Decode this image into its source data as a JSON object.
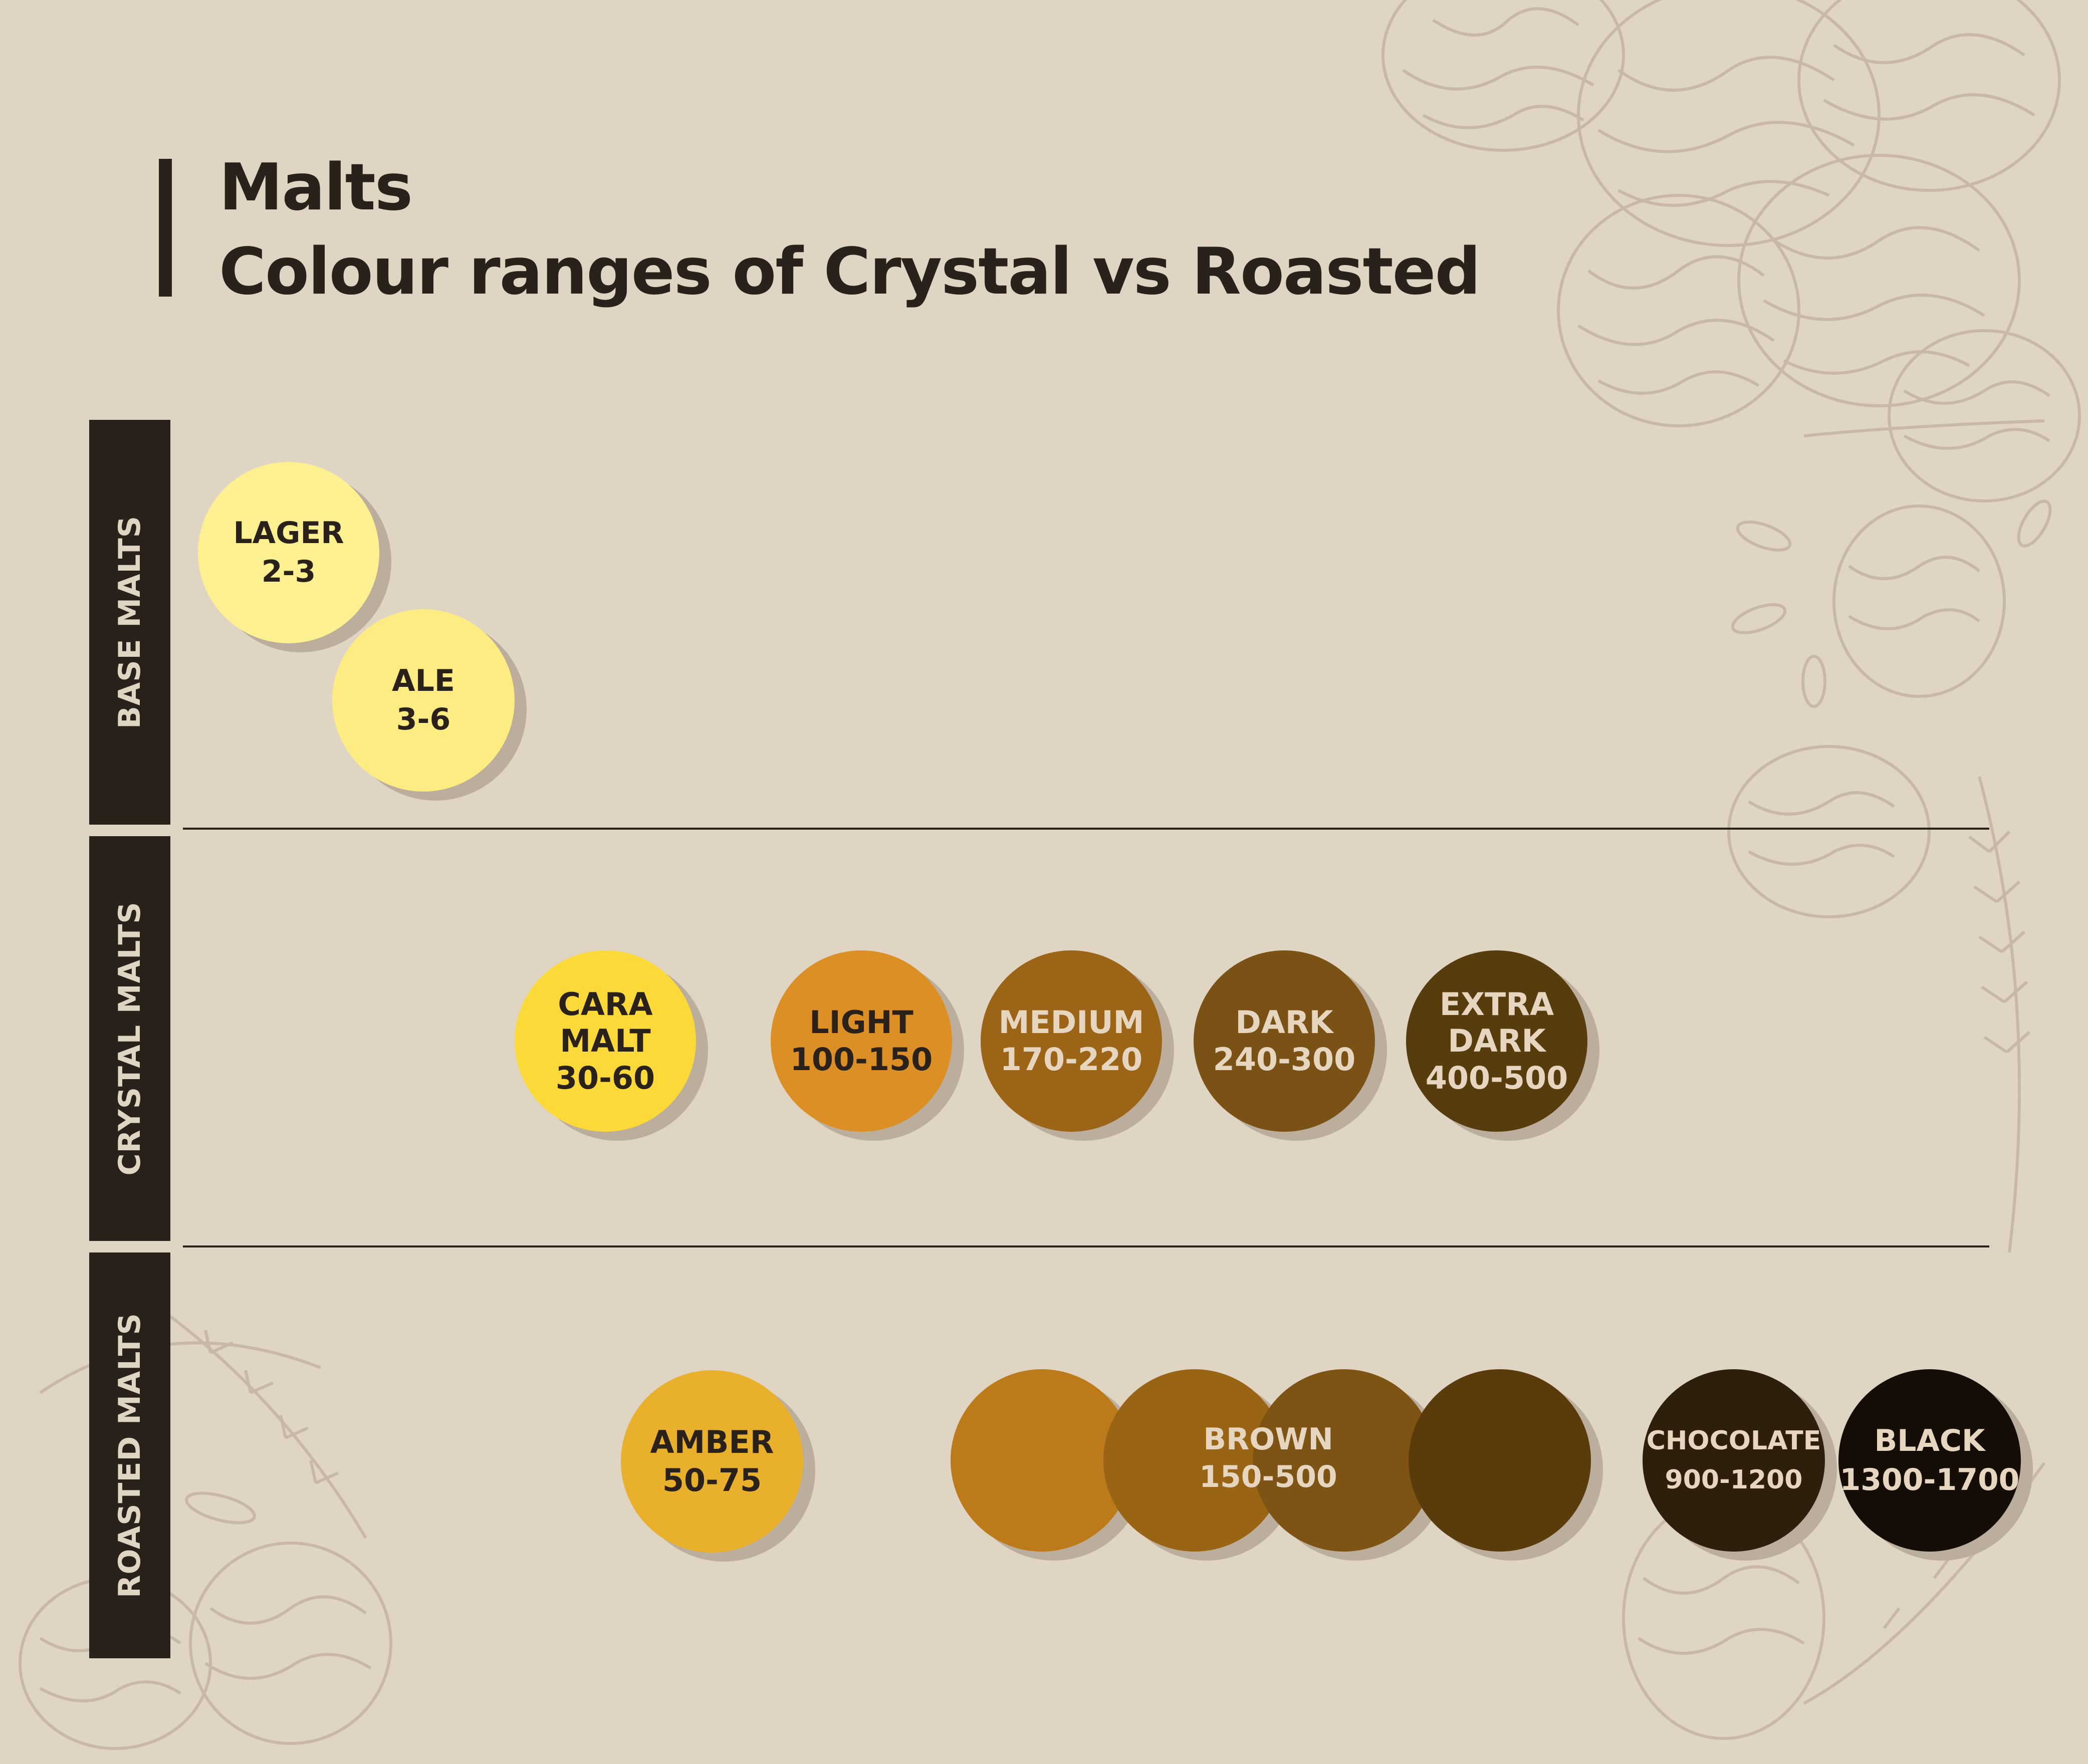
{
  "title": {
    "line1": "Malts",
    "line2": "Colour ranges of Crystal vs Roasted"
  },
  "sections": [
    {
      "label": "BASE MALTS",
      "malts": [
        {
          "name": "LAGER",
          "range": "2-3",
          "color": "#fdf091"
        },
        {
          "name": "ALE",
          "range": "3-6",
          "color": "#fdec82"
        }
      ]
    },
    {
      "label": "CRYSTAL MALTS",
      "malts": [
        {
          "name_lines": [
            "CARA",
            "MALT"
          ],
          "range": "30-60",
          "color": "#fbd938"
        },
        {
          "name": "LIGHT",
          "range": "100-150",
          "color": "#dc8f24"
        },
        {
          "name": "MEDIUM",
          "range": "170-220",
          "color": "#9b6416"
        },
        {
          "name": "DARK",
          "range": "240-300",
          "color": "#7a5216"
        },
        {
          "name_lines": [
            "EXTRA",
            "DARK"
          ],
          "range": "400-500",
          "color": "#573d0e"
        }
      ]
    },
    {
      "label": "ROASTED MALTS",
      "malts": [
        {
          "name": "AMBER",
          "range": "50-75",
          "color": "#e8b02b"
        },
        {
          "name": "BROWN",
          "range": "150-500",
          "colors": [
            "#bc7a1a",
            "#9a6415",
            "#7e5415",
            "#5a3c0c"
          ]
        },
        {
          "name": "CHOCOLATE",
          "range": "900-1200",
          "color": "#2d1f0b"
        },
        {
          "name": "BLACK",
          "range": "1300-1700",
          "color": "#150d06"
        }
      ]
    }
  ]
}
